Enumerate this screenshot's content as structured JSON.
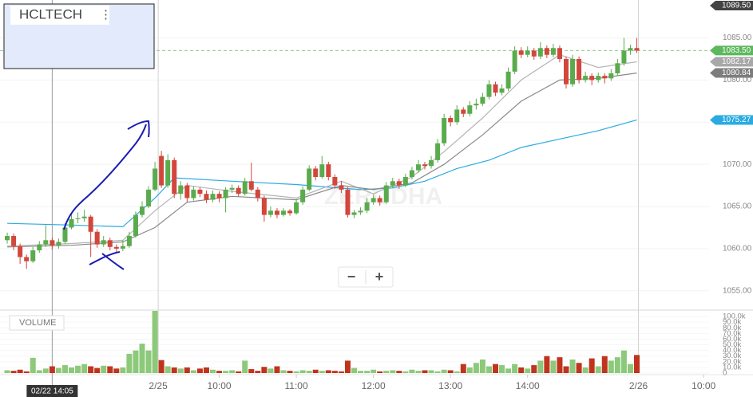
{
  "chart_data": {
    "type": "candlestick",
    "symbol": "HCLTECH",
    "watermark": "ZERODHA",
    "crosshair_label": "02/22 14:05",
    "crosshair_x": 7,
    "xlim": [
      -1.125,
      109.25
    ],
    "xticks": [
      {
        "value": 23.5,
        "label": "2/25"
      },
      {
        "value": 33,
        "label": "10:00"
      },
      {
        "value": 45,
        "label": "11:00"
      },
      {
        "value": 57,
        "label": "12:00"
      },
      {
        "value": 69,
        "label": "13:00"
      },
      {
        "value": 81,
        "label": "14:00"
      },
      {
        "value": 98.25,
        "label": "2/26"
      },
      {
        "value": 108.4,
        "label": "10:00"
      }
    ],
    "ylim": [
      1052.8,
      1089.5
    ],
    "yticks": [
      {
        "value": 1055,
        "label": "1055.00"
      },
      {
        "value": 1060,
        "label": "1060.00"
      },
      {
        "value": 1065,
        "label": "1065.00"
      },
      {
        "value": 1070,
        "label": "1070.00"
      },
      {
        "value": 1075,
        "label": "1075.00"
      },
      {
        "value": 1080,
        "label": "1080.00"
      },
      {
        "value": 1085,
        "label": "1085.00"
      }
    ],
    "up_color": "#5aab4d",
    "down_color": "#d2463c",
    "candles": [
      [
        1061.0,
        1061.9,
        1060.6,
        1061.5
      ],
      [
        1061.5,
        1061.8,
        1059.8,
        1060.3
      ],
      [
        1060.3,
        1060.6,
        1058.2,
        1059.0
      ],
      [
        1059.0,
        1059.3,
        1057.6,
        1058.5
      ],
      [
        1058.5,
        1060.2,
        1058.3,
        1059.8
      ],
      [
        1059.8,
        1060.9,
        1059.5,
        1060.5
      ],
      [
        1060.5,
        1062.8,
        1060.2,
        1061.0
      ],
      [
        1061.0,
        1061.3,
        1059.9,
        1060.4
      ],
      [
        1060.4,
        1061.2,
        1060.0,
        1060.8
      ],
      [
        1060.8,
        1063.0,
        1060.6,
        1062.5
      ],
      [
        1062.5,
        1064.2,
        1062.3,
        1063.5
      ],
      [
        1063.5,
        1064.3,
        1063.0,
        1063.6
      ],
      [
        1063.6,
        1064.6,
        1063.2,
        1063.8
      ],
      [
        1063.8,
        1064.0,
        1059.0,
        1062.0
      ],
      [
        1062.0,
        1062.3,
        1060.1,
        1060.5
      ],
      [
        1060.5,
        1061.5,
        1060.2,
        1061.0
      ],
      [
        1061.0,
        1061.3,
        1059.8,
        1060.2
      ],
      [
        1060.2,
        1060.5,
        1059.6,
        1060.0
      ],
      [
        1060.0,
        1061.0,
        1059.7,
        1060.3
      ],
      [
        1060.3,
        1062.0,
        1060.1,
        1061.5
      ],
      [
        1061.5,
        1064.4,
        1061.3,
        1064.0
      ],
      [
        1064.0,
        1065.6,
        1063.7,
        1065.0
      ],
      [
        1065.0,
        1067.4,
        1064.8,
        1067.0
      ],
      [
        1067.0,
        1070.3,
        1066.8,
        1069.5
      ],
      [
        1071.0,
        1071.6,
        1067.2,
        1067.5
      ],
      [
        1067.5,
        1071.2,
        1067.2,
        1070.5
      ],
      [
        1070.5,
        1070.8,
        1066.0,
        1066.5
      ],
      [
        1066.5,
        1068.0,
        1065.8,
        1067.5
      ],
      [
        1067.5,
        1067.8,
        1065.5,
        1066.0
      ],
      [
        1066.0,
        1067.4,
        1065.7,
        1067.0
      ],
      [
        1067.0,
        1067.3,
        1066.1,
        1066.5
      ],
      [
        1066.5,
        1066.9,
        1065.4,
        1065.8
      ],
      [
        1065.8,
        1066.9,
        1065.5,
        1066.5
      ],
      [
        1066.5,
        1066.8,
        1065.5,
        1066.0
      ],
      [
        1066.0,
        1067.3,
        1064.3,
        1067.0
      ],
      [
        1067.0,
        1067.6,
        1066.6,
        1067.2
      ],
      [
        1067.2,
        1067.5,
        1066.2,
        1066.5
      ],
      [
        1066.5,
        1068.4,
        1066.3,
        1068.0
      ],
      [
        1068.0,
        1070.2,
        1066.8,
        1067.0
      ],
      [
        1067.0,
        1067.3,
        1065.6,
        1066.0
      ],
      [
        1066.0,
        1066.3,
        1063.2,
        1064.0
      ],
      [
        1064.0,
        1065.0,
        1063.7,
        1064.5
      ],
      [
        1064.5,
        1064.8,
        1063.6,
        1064.0
      ],
      [
        1064.0,
        1064.8,
        1063.8,
        1064.5
      ],
      [
        1064.5,
        1064.7,
        1063.9,
        1064.2
      ],
      [
        1064.2,
        1065.9,
        1064.0,
        1065.5
      ],
      [
        1065.5,
        1067.4,
        1065.2,
        1067.0
      ],
      [
        1067.0,
        1069.9,
        1066.8,
        1069.5
      ],
      [
        1069.5,
        1069.8,
        1068.1,
        1068.5
      ],
      [
        1068.5,
        1071.0,
        1068.3,
        1070.0
      ],
      [
        1070.0,
        1070.3,
        1068.1,
        1068.5
      ],
      [
        1068.5,
        1068.8,
        1067.1,
        1067.5
      ],
      [
        1067.5,
        1068.0,
        1066.6,
        1067.0
      ],
      [
        1067.0,
        1067.3,
        1063.7,
        1064.0
      ],
      [
        1064.0,
        1064.6,
        1063.6,
        1064.3
      ],
      [
        1064.3,
        1064.9,
        1064.0,
        1064.5
      ],
      [
        1064.5,
        1066.0,
        1064.2,
        1065.5
      ],
      [
        1065.5,
        1066.4,
        1065.2,
        1066.0
      ],
      [
        1066.0,
        1066.3,
        1065.1,
        1065.5
      ],
      [
        1065.5,
        1067.9,
        1065.3,
        1067.5
      ],
      [
        1067.5,
        1068.4,
        1067.2,
        1068.0
      ],
      [
        1068.0,
        1068.3,
        1067.1,
        1067.5
      ],
      [
        1067.5,
        1068.9,
        1067.3,
        1068.5
      ],
      [
        1068.5,
        1069.7,
        1068.2,
        1069.3
      ],
      [
        1069.3,
        1070.5,
        1069.0,
        1070.0
      ],
      [
        1070.0,
        1070.3,
        1069.4,
        1069.8
      ],
      [
        1069.8,
        1071.0,
        1069.5,
        1070.5
      ],
      [
        1070.5,
        1073.0,
        1070.2,
        1072.5
      ],
      [
        1072.5,
        1076.0,
        1072.2,
        1075.5
      ],
      [
        1075.5,
        1075.8,
        1074.5,
        1075.0
      ],
      [
        1075.0,
        1077.0,
        1074.7,
        1076.5
      ],
      [
        1076.5,
        1076.8,
        1075.6,
        1076.0
      ],
      [
        1076.0,
        1077.5,
        1075.7,
        1077.0
      ],
      [
        1077.0,
        1077.8,
        1076.5,
        1077.2
      ],
      [
        1077.2,
        1078.5,
        1076.9,
        1078.0
      ],
      [
        1078.0,
        1080.0,
        1077.7,
        1079.5
      ],
      [
        1079.5,
        1079.8,
        1078.1,
        1078.5
      ],
      [
        1078.5,
        1079.5,
        1078.2,
        1079.0
      ],
      [
        1079.0,
        1081.5,
        1078.7,
        1081.0
      ],
      [
        1081.0,
        1084.0,
        1080.7,
        1083.5
      ],
      [
        1083.5,
        1083.9,
        1082.6,
        1083.0
      ],
      [
        1083.0,
        1084.0,
        1082.7,
        1083.5
      ],
      [
        1083.5,
        1083.8,
        1082.4,
        1082.8
      ],
      [
        1082.8,
        1084.5,
        1082.5,
        1083.8
      ],
      [
        1083.8,
        1084.1,
        1082.6,
        1083.0
      ],
      [
        1083.0,
        1084.3,
        1082.7,
        1083.8
      ],
      [
        1083.8,
        1084.1,
        1082.1,
        1082.5
      ],
      [
        1082.5,
        1082.8,
        1079.0,
        1079.5
      ],
      [
        1079.5,
        1083.0,
        1079.2,
        1082.5
      ],
      [
        1082.5,
        1082.8,
        1079.6,
        1080.0
      ],
      [
        1080.0,
        1081.0,
        1079.7,
        1080.5
      ],
      [
        1080.5,
        1080.8,
        1079.4,
        1080.0
      ],
      [
        1080.0,
        1080.9,
        1079.7,
        1080.5
      ],
      [
        1080.5,
        1080.8,
        1079.6,
        1080.2
      ],
      [
        1080.2,
        1081.3,
        1079.9,
        1080.8
      ],
      [
        1080.8,
        1082.5,
        1080.5,
        1082.0
      ],
      [
        1082.0,
        1085.0,
        1081.7,
        1083.5
      ],
      [
        1083.5,
        1084.2,
        1083.0,
        1083.8
      ],
      [
        1083.8,
        1085.0,
        1083.2,
        1083.5
      ]
    ],
    "overlays": [
      {
        "color": "#29abe2",
        "x": [
          0,
          10,
          18,
          23,
          26,
          35,
          45,
          55,
          60,
          65,
          70,
          75,
          80,
          86,
          92,
          98
        ],
        "values": [
          1063.0,
          1062.8,
          1062.6,
          1066.0,
          1068.4,
          1068.0,
          1067.6,
          1067.0,
          1067.2,
          1068.0,
          1069.5,
          1070.5,
          1072.0,
          1073.0,
          1074.0,
          1075.27
        ]
      },
      {
        "color": "#b5b5b5",
        "x": [
          0,
          10,
          18,
          23,
          28,
          35,
          45,
          52,
          57,
          63,
          68,
          74,
          80,
          86,
          92,
          98
        ],
        "values": [
          1060.3,
          1060.6,
          1061.0,
          1064.5,
          1067.5,
          1066.8,
          1066.0,
          1068.0,
          1066.5,
          1068.5,
          1071.5,
          1075.5,
          1080.0,
          1083.0,
          1081.5,
          1082.17
        ]
      },
      {
        "color": "#8a8a8a",
        "x": [
          0,
          10,
          18,
          23,
          28,
          35,
          45,
          52,
          57,
          63,
          68,
          74,
          80,
          86,
          92,
          98
        ],
        "values": [
          1060.2,
          1060.4,
          1060.8,
          1062.5,
          1065.5,
          1066.2,
          1065.8,
          1067.5,
          1067.0,
          1067.8,
          1070.0,
          1073.5,
          1077.5,
          1080.0,
          1080.2,
          1080.84
        ]
      }
    ],
    "price_labels": [
      {
        "value": 1089.5,
        "label": "1089.50",
        "color": "#444444"
      },
      {
        "value": 1083.5,
        "label": "1083.50",
        "color": "#5cb85c"
      },
      {
        "value": 1082.17,
        "label": "1082.17",
        "color": "#a8a8a8"
      },
      {
        "value": 1080.84,
        "label": "1080.84",
        "color": "#7d7d7d"
      },
      {
        "value": 1075.27,
        "label": "1075.27",
        "color": "#29abe2"
      }
    ],
    "current_price_line": 1,
    "volume": {
      "label": "VOLUME",
      "ylim": [
        0,
        110000
      ],
      "yticks": [
        0,
        {
          "value": 10000,
          "label": "10.0k"
        },
        {
          "value": 20000,
          "label": "20.0k"
        },
        {
          "value": 30000,
          "label": "30.0k"
        },
        {
          "value": 40000,
          "label": "40.0k"
        },
        {
          "value": 50000,
          "label": "50.0k"
        },
        {
          "value": 60000,
          "label": "60.0k"
        },
        {
          "value": 70000,
          "label": "70.0k"
        },
        {
          "value": 80000,
          "label": "80.0k"
        },
        {
          "value": 90000,
          "label": "90.0k"
        },
        {
          "value": 100000,
          "label": "100.0k"
        }
      ],
      "values": [
        5000,
        4000,
        6000,
        3000,
        27000,
        5000,
        8000,
        12000,
        9000,
        14000,
        10000,
        13000,
        16000,
        12000,
        9000,
        13000,
        12000,
        8000,
        10000,
        34000,
        40000,
        52000,
        40000,
        110000,
        23000,
        12000,
        10000,
        8000,
        10000,
        5000,
        8000,
        10000,
        6000,
        4000,
        4000,
        5000,
        3000,
        22000,
        7000,
        4000,
        11000,
        8000,
        12000,
        5000,
        4000,
        3000,
        5000,
        4000,
        6000,
        4000,
        5000,
        4000,
        3000,
        22000,
        9000,
        4000,
        4000,
        6000,
        3000,
        4000,
        5000,
        4000,
        3000,
        6000,
        4000,
        5000,
        5000,
        3000,
        6000,
        5000,
        3000,
        16000,
        10000,
        18000,
        24000,
        12000,
        16000,
        14000,
        8000,
        16000,
        10000,
        8000,
        14000,
        22000,
        30000,
        22000,
        28000,
        12000,
        24000,
        18000,
        10000,
        26000,
        12000,
        30000,
        22000,
        28000,
        40000,
        16000,
        32000
      ]
    }
  },
  "ui": {
    "zoom_out": "−",
    "zoom_in": "+",
    "menu_icon": "⋮"
  }
}
